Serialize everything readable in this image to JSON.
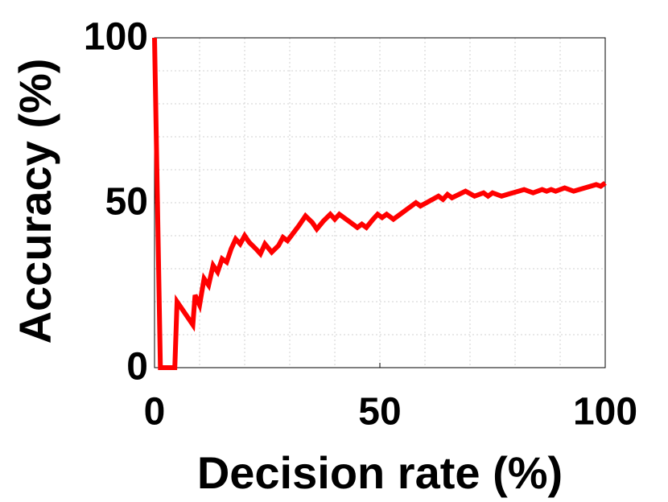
{
  "chart_data": {
    "type": "line",
    "x_label": "Decision rate (%)",
    "y_label": "Accuracy (%)",
    "xlim": [
      0,
      100
    ],
    "ylim": [
      0,
      100
    ],
    "xticks": [
      0,
      50,
      100
    ],
    "yticks": [
      0,
      50,
      100
    ],
    "x_minor_ticks": [
      10,
      20,
      30,
      40,
      60,
      70,
      80,
      90
    ],
    "y_minor_ticks": [
      10,
      20,
      30,
      40,
      60,
      70,
      80,
      90
    ],
    "grid": true,
    "series": [
      {
        "color": "#ff0000",
        "x": [
          0,
          1.3,
          4.5,
          5,
          8.5,
          9,
          10,
          11,
          12,
          13,
          14,
          15,
          16,
          17,
          18,
          19,
          20,
          21,
          22.5,
          23.5,
          24.5,
          26,
          27.5,
          28.5,
          29.5,
          32,
          33.5,
          35,
          36,
          37.5,
          39,
          40,
          41,
          43.5,
          45,
          46,
          47,
          48.5,
          49.5,
          50.5,
          51.5,
          53,
          55,
          57,
          58,
          59,
          63,
          64,
          65,
          66,
          69,
          71,
          73,
          74,
          75,
          77,
          82,
          84,
          86,
          87,
          88,
          89,
          91,
          93,
          98,
          99,
          100
        ],
        "values": [
          100,
          0,
          0,
          20,
          13,
          22,
          19,
          27,
          25,
          31,
          29,
          33,
          32,
          36,
          39,
          37.5,
          40,
          38,
          36,
          34.5,
          37.5,
          35,
          37,
          39.5,
          38.5,
          43,
          46,
          44,
          42,
          44.5,
          46.5,
          45,
          46.5,
          44,
          42.5,
          43.5,
          42.5,
          45,
          46.5,
          45.5,
          46.5,
          45,
          47,
          49,
          50,
          49,
          52,
          51,
          52.5,
          51.5,
          53.5,
          52,
          53,
          52,
          53,
          52,
          54,
          53,
          54,
          53.5,
          54,
          53.5,
          54.5,
          53.5,
          55.5,
          55,
          56
        ]
      }
    ]
  }
}
